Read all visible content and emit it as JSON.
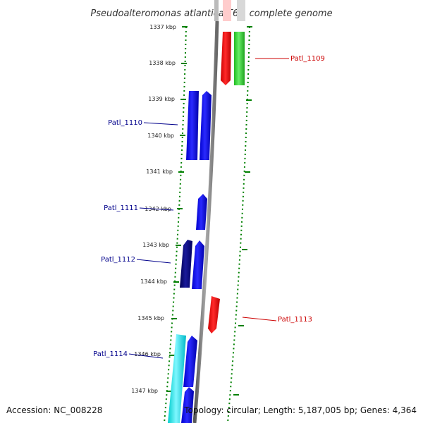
{
  "title": "Pseudoalteromonas atlantica T6c, complete genome",
  "footer": {
    "accession": "Accession: NC_008228",
    "summary": "Topology: circular; Length: 5,187,005 bp; Genes: 4,364"
  },
  "ruler_labels": [
    "1337 kbp",
    "1338 kbp",
    "1339 kbp",
    "1340 kbp",
    "1341 kbp",
    "1342 kbp",
    "1343 kbp",
    "1344 kbp",
    "1345 kbp",
    "1346 kbp",
    "1347 kbp"
  ],
  "genes": [
    {
      "name": "Patl_1109",
      "strand": "reverse",
      "color": "#ff0000"
    },
    {
      "name": "Patl_1110",
      "strand": "forward",
      "color": "#0000ff"
    },
    {
      "name": "Patl_1111",
      "strand": "forward",
      "color": "#0000ff"
    },
    {
      "name": "Patl_1112",
      "strand": "forward",
      "color": "#000080"
    },
    {
      "name": "Patl_1113",
      "strand": "reverse",
      "color": "#ff0000"
    },
    {
      "name": "Patl_1114",
      "strand": "forward",
      "color": "#00e5ff"
    }
  ],
  "colors": {
    "track_line": "#888888",
    "dotted_ring": "#008000",
    "forward_label": "#00008b",
    "reverse_label": "#cc0000",
    "green_feature": "#33cc33"
  }
}
